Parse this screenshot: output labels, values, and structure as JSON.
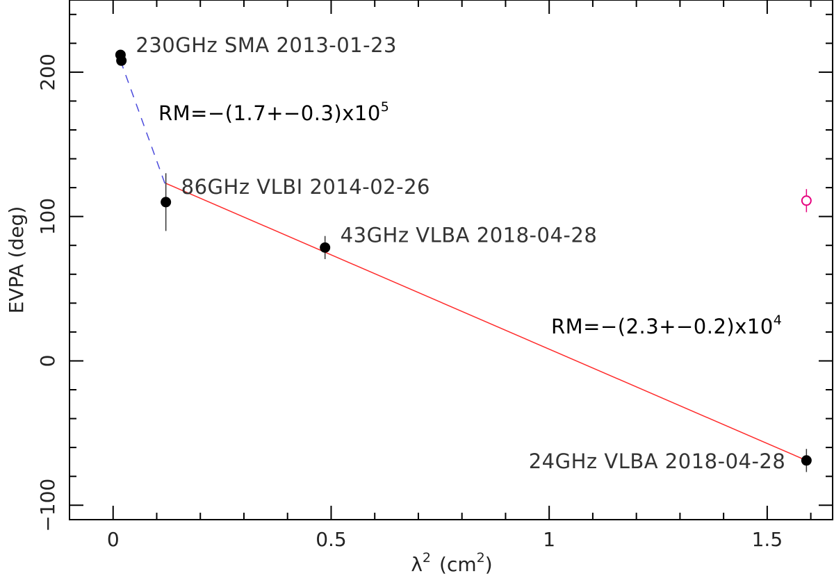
{
  "chart_data": {
    "type": "scatter",
    "xlabel": "λ",
    "xlabel_sup": "2",
    "xlabel_unit": "(cm",
    "xlabel_unit_sup": "2",
    "xlabel_close": ")",
    "ylabel": "EVPA (deg)",
    "xlim": [
      -0.1,
      1.65
    ],
    "ylim": [
      -110,
      250
    ],
    "xticks": [
      0,
      0.5,
      1,
      1.5
    ],
    "xtick_labels": [
      "0",
      "0.5",
      "1",
      "1.5"
    ],
    "yticks": [
      -100,
      0,
      100,
      200
    ],
    "ytick_labels": [
      "−100",
      "0",
      "100",
      "200"
    ],
    "series": [
      {
        "marker": "filled-circle",
        "color": "#000000",
        "points": [
          {
            "x": 0.017,
            "y": 212,
            "err": 0
          },
          {
            "x": 0.019,
            "y": 208,
            "err": 0
          },
          {
            "x": 0.121,
            "y": 110,
            "err": 20
          },
          {
            "x": 0.486,
            "y": 78.5,
            "err": 8
          },
          {
            "x": 1.59,
            "y": -69,
            "err": 8
          }
        ]
      },
      {
        "marker": "open-circle",
        "color": "#e6007e",
        "points": [
          {
            "x": 1.59,
            "y": 111,
            "err": 8
          }
        ]
      }
    ],
    "fits": [
      {
        "style": "dashed",
        "color": "#4a4adc",
        "x": [
          0.017,
          0.121
        ],
        "y": [
          208,
          121
        ]
      },
      {
        "style": "solid",
        "color": "#ff2a2a",
        "x": [
          0.121,
          1.59
        ],
        "y": [
          123,
          -69
        ]
      }
    ],
    "point_labels": [
      {
        "text": "230GHz SMA 2013-01-23",
        "x": 0.017,
        "y": 212
      },
      {
        "text": "86GHz VLBI 2014-02-26",
        "x": 0.121,
        "y": 110
      },
      {
        "text": "43GHz VLBA 2018-04-28",
        "x": 0.486,
        "y": 78.5
      },
      {
        "text": "24GHz VLBA 2018-04-28",
        "x": 1.59,
        "y": -69
      }
    ],
    "annotations": [
      {
        "text": "RM=−(1.7+−0.3)x10",
        "sup": "5",
        "color": "#4a4adc"
      },
      {
        "text": "RM=−(2.3+−0.2)x10",
        "sup": "4",
        "color": "#ff2a2a"
      }
    ]
  }
}
